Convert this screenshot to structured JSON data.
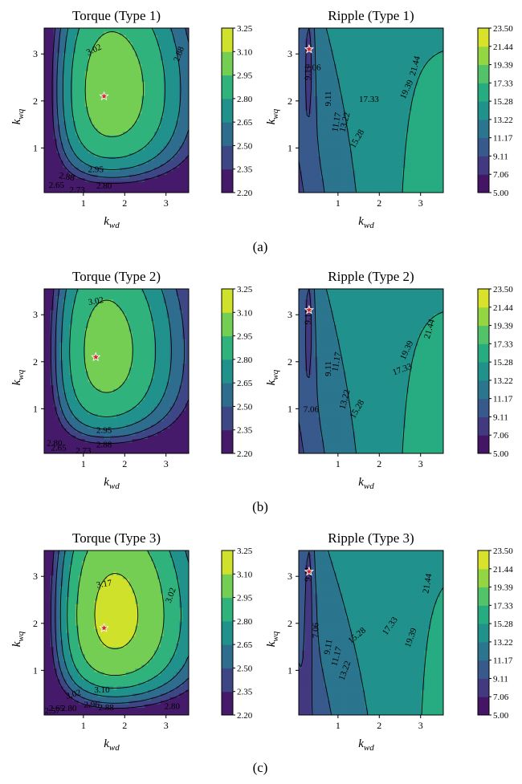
{
  "figure": {
    "panel_labels": [
      "(a)",
      "(b)",
      "(c)"
    ]
  },
  "colors": {
    "viridis": [
      "#440154",
      "#472d7b",
      "#3b528b",
      "#2c728e",
      "#21918c",
      "#28ae80",
      "#5ec962",
      "#addc30",
      "#fde725"
    ],
    "star_fill": "#d62728",
    "star_stroke": "#ffffff",
    "contour_line": "#000000"
  },
  "chart_data": [
    {
      "type": "contour",
      "title": "Torque (Type 1)",
      "xlabel_main": "k",
      "xlabel_sub": "wd",
      "ylabel_main": "k",
      "ylabel_sub": "wq",
      "xlim": [
        0.05,
        3.55
      ],
      "ylim": [
        0.05,
        3.55
      ],
      "xticks": [
        1,
        2,
        3
      ],
      "yticks": [
        1,
        2,
        3
      ],
      "colorbar_ticks": [
        "2.20",
        "2.35",
        "2.50",
        "2.65",
        "2.80",
        "2.95",
        "3.10",
        "3.25"
      ],
      "colorbar_range": [
        2.2,
        3.25
      ],
      "model": {
        "kind": "torque",
        "cx": 1.5,
        "cy": 2.1,
        "peak": 3.07,
        "ax": 0.12,
        "ay": 0.05,
        "ex": 0.9,
        "bx": 0.45,
        "ey": 0.9,
        "by": 0.45
      },
      "star": {
        "x": 1.5,
        "y": 2.1
      },
      "contour_labels": [
        {
          "text": "3.02",
          "x": 1.25,
          "y": 3.1,
          "rot": -25
        },
        {
          "text": "2.88",
          "x": 3.3,
          "y": 3.0,
          "rot": -70
        },
        {
          "text": "2.95",
          "x": 1.3,
          "y": 0.55,
          "rot": 0
        },
        {
          "text": "2.88",
          "x": 0.6,
          "y": 0.4,
          "rot": 10
        },
        {
          "text": "2.80",
          "x": 1.5,
          "y": 0.2,
          "rot": 0
        },
        {
          "text": "2.65",
          "x": 0.35,
          "y": 0.22,
          "rot": 0
        },
        {
          "text": "2.73",
          "x": 0.85,
          "y": 0.12,
          "rot": 0
        }
      ]
    },
    {
      "type": "contour",
      "title": "Ripple (Type 1)",
      "xlabel_main": "k",
      "xlabel_sub": "wd",
      "ylabel_main": "k",
      "ylabel_sub": "wq",
      "xlim": [
        0.05,
        3.55
      ],
      "ylim": [
        0.05,
        3.55
      ],
      "xticks": [
        1,
        2,
        3
      ],
      "yticks": [
        1,
        2,
        3
      ],
      "colorbar_ticks": [
        "5.00",
        "7.06",
        "9.11",
        "11.17",
        "13.22",
        "15.28",
        "17.33",
        "19.39",
        "21.44",
        "23.50"
      ],
      "colorbar_range": [
        5.0,
        23.5
      ],
      "model": {
        "kind": "ripple",
        "gx": 5.5,
        "gy": 0.8,
        "base": 8.3,
        "nx": 0.35,
        "valley": 3.3,
        "vx": 0.3,
        "vy": 3.1,
        "vsx": 0.1,
        "vsy": 1.3
      },
      "star": {
        "x": 0.3,
        "y": 3.1
      },
      "contour_labels": [
        {
          "text": "7.06",
          "x": 0.4,
          "y": 2.72,
          "rot": 0
        },
        {
          "text": "9.11",
          "x": 0.25,
          "y": 2.6,
          "rot": -90
        },
        {
          "text": "9.11",
          "x": 0.75,
          "y": 2.05,
          "rot": -90
        },
        {
          "text": "11.17",
          "x": 0.95,
          "y": 1.55,
          "rot": -80
        },
        {
          "text": "13.22",
          "x": 1.15,
          "y": 1.55,
          "rot": -75
        },
        {
          "text": "15.28",
          "x": 1.45,
          "y": 1.2,
          "rot": -60
        },
        {
          "text": "17.33",
          "x": 1.75,
          "y": 2.05,
          "rot": 0
        },
        {
          "text": "19.39",
          "x": 2.65,
          "y": 2.25,
          "rot": -65
        },
        {
          "text": "21.44",
          "x": 2.85,
          "y": 2.75,
          "rot": -75
        }
      ]
    },
    {
      "type": "contour",
      "title": "Torque (Type 2)",
      "xlabel_main": "k",
      "xlabel_sub": "wd",
      "ylabel_main": "k",
      "ylabel_sub": "wq",
      "xlim": [
        0.05,
        3.55
      ],
      "ylim": [
        0.05,
        3.55
      ],
      "xticks": [
        1,
        2,
        3
      ],
      "yticks": [
        1,
        2,
        3
      ],
      "colorbar_ticks": [
        "2.20",
        "2.35",
        "2.50",
        "2.65",
        "2.80",
        "2.95",
        "3.10",
        "3.25"
      ],
      "colorbar_range": [
        2.2,
        3.25
      ],
      "model": {
        "kind": "torque",
        "cx": 1.3,
        "cy": 2.1,
        "peak": 3.06,
        "ax": 0.12,
        "ay": 0.05,
        "ex": 0.9,
        "bx": 0.45,
        "ey": 0.9,
        "by": 0.45
      },
      "star": {
        "x": 1.3,
        "y": 2.1
      },
      "contour_labels": [
        {
          "text": "3.02",
          "x": 1.3,
          "y": 3.3,
          "rot": -10
        },
        {
          "text": "2.95",
          "x": 1.5,
          "y": 0.55,
          "rot": 0
        },
        {
          "text": "2.88",
          "x": 1.5,
          "y": 0.25,
          "rot": 0
        },
        {
          "text": "2.65",
          "x": 0.4,
          "y": 0.18,
          "rot": 0
        },
        {
          "text": "2.73",
          "x": 1.0,
          "y": 0.12,
          "rot": 0
        },
        {
          "text": "2.80",
          "x": 0.3,
          "y": 0.28,
          "rot": 0
        }
      ]
    },
    {
      "type": "contour",
      "title": "Ripple (Type 2)",
      "xlabel_main": "k",
      "xlabel_sub": "wd",
      "ylabel_main": "k",
      "ylabel_sub": "wq",
      "xlim": [
        0.05,
        3.55
      ],
      "ylim": [
        0.05,
        3.55
      ],
      "xticks": [
        1,
        2,
        3
      ],
      "yticks": [
        1,
        2,
        3
      ],
      "colorbar_ticks": [
        "5.00",
        "7.06",
        "9.11",
        "11.17",
        "13.22",
        "15.28",
        "17.33",
        "19.39",
        "21.44",
        "23.50"
      ],
      "colorbar_range": [
        5.0,
        23.5
      ],
      "model": {
        "kind": "ripple",
        "gx": 5.5,
        "gy": 0.8,
        "base": 8.3,
        "nx": 0.35,
        "valley": 3.3,
        "vx": 0.3,
        "vy": 3.1,
        "vsx": 0.1,
        "vsy": 1.3
      },
      "star": {
        "x": 0.3,
        "y": 3.1
      },
      "contour_labels": [
        {
          "text": "9.11",
          "x": 0.25,
          "y": 2.95,
          "rot": -90
        },
        {
          "text": "9.11",
          "x": 0.75,
          "y": 1.85,
          "rot": -90
        },
        {
          "text": "7.06",
          "x": 0.35,
          "y": 1.0,
          "rot": 0
        },
        {
          "text": "11.17",
          "x": 0.95,
          "y": 2.0,
          "rot": -80
        },
        {
          "text": "13.22",
          "x": 1.15,
          "y": 1.2,
          "rot": -75
        },
        {
          "text": "15.28",
          "x": 1.45,
          "y": 1.0,
          "rot": -60
        },
        {
          "text": "17.33",
          "x": 2.55,
          "y": 1.85,
          "rot": -20
        },
        {
          "text": "19.39",
          "x": 2.65,
          "y": 2.25,
          "rot": -65
        },
        {
          "text": "21.44",
          "x": 3.2,
          "y": 2.7,
          "rot": -75
        }
      ]
    },
    {
      "type": "contour",
      "title": "Torque (Type 3)",
      "xlabel_main": "k",
      "xlabel_sub": "wd",
      "ylabel_main": "k",
      "ylabel_sub": "wq",
      "xlim": [
        0.05,
        3.55
      ],
      "ylim": [
        0.05,
        3.55
      ],
      "xticks": [
        1,
        2,
        3
      ],
      "yticks": [
        1,
        2,
        3
      ],
      "colorbar_ticks": [
        "2.20",
        "2.35",
        "2.50",
        "2.65",
        "2.80",
        "2.95",
        "3.10",
        "3.25"
      ],
      "colorbar_range": [
        2.2,
        3.25
      ],
      "model": {
        "kind": "torque",
        "cx": 1.5,
        "cy": 1.9,
        "peak": 3.2,
        "ax": 0.11,
        "ay": 0.045,
        "ex": 1.0,
        "bx": 0.5,
        "ey": 1.0,
        "by": 0.5
      },
      "star": {
        "x": 1.5,
        "y": 1.9
      },
      "contour_labels": [
        {
          "text": "3.17",
          "x": 1.5,
          "y": 2.85,
          "rot": -10
        },
        {
          "text": "3.02",
          "x": 3.1,
          "y": 2.6,
          "rot": -70
        },
        {
          "text": "3.10",
          "x": 1.45,
          "y": 0.6,
          "rot": 0
        },
        {
          "text": "3.02",
          "x": 0.75,
          "y": 0.5,
          "rot": -15
        },
        {
          "text": "2.96",
          "x": 1.2,
          "y": 0.28,
          "rot": 0
        },
        {
          "text": "2.88",
          "x": 1.55,
          "y": 0.22,
          "rot": 0
        },
        {
          "text": "2.80",
          "x": 3.15,
          "y": 0.25,
          "rot": 0
        },
        {
          "text": "2.80",
          "x": 0.65,
          "y": 0.2,
          "rot": 0
        },
        {
          "text": "2.65",
          "x": 0.35,
          "y": 0.2,
          "rot": 0
        },
        {
          "text": "2.57",
          "x": 0.25,
          "y": 0.15,
          "rot": 0
        }
      ]
    },
    {
      "type": "contour",
      "title": "Ripple (Type 3)",
      "xlabel_main": "k",
      "xlabel_sub": "wd",
      "ylabel_main": "k",
      "ylabel_sub": "wq",
      "xlim": [
        0.05,
        3.55
      ],
      "ylim": [
        0.05,
        3.55
      ],
      "xticks": [
        1,
        2,
        3
      ],
      "yticks": [
        1,
        2,
        3
      ],
      "colorbar_ticks": [
        "5.00",
        "7.06",
        "9.11",
        "11.17",
        "13.22",
        "15.28",
        "17.33",
        "19.39",
        "21.44",
        "23.50"
      ],
      "colorbar_range": [
        5.0,
        23.5
      ],
      "model": {
        "kind": "ripple",
        "gx": 5.3,
        "gy": 0.9,
        "base": 7.9,
        "nx": 0.32,
        "valley": 3.1,
        "vx": 0.3,
        "vy": 3.1,
        "vsx": 0.1,
        "vsy": 1.8
      },
      "star": {
        "x": 0.3,
        "y": 3.1
      },
      "contour_labels": [
        {
          "text": "7.06",
          "x": 0.45,
          "y": 1.85,
          "rot": -90
        },
        {
          "text": "9.11",
          "x": 0.25,
          "y": 3.05,
          "rot": -90
        },
        {
          "text": "9.11",
          "x": 0.75,
          "y": 1.5,
          "rot": -80
        },
        {
          "text": "11.17",
          "x": 0.95,
          "y": 1.3,
          "rot": -75
        },
        {
          "text": "13.22",
          "x": 1.15,
          "y": 1.0,
          "rot": -70
        },
        {
          "text": "15.28",
          "x": 1.45,
          "y": 1.75,
          "rot": -40
        },
        {
          "text": "17.33",
          "x": 2.25,
          "y": 1.95,
          "rot": -55
        },
        {
          "text": "19.39",
          "x": 2.75,
          "y": 1.7,
          "rot": -70
        },
        {
          "text": "21.44",
          "x": 3.15,
          "y": 2.85,
          "rot": -80
        }
      ]
    }
  ]
}
